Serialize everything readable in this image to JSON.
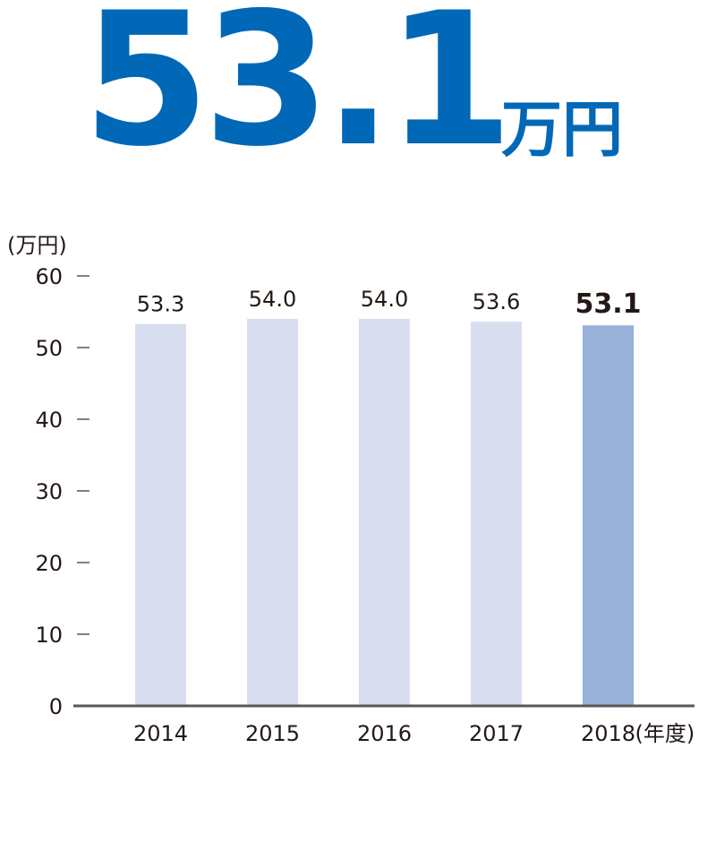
{
  "headline": {
    "value": "53.1",
    "unit": "万円"
  },
  "colors": {
    "headline": "#0068b7",
    "bar_default": "#d8deef",
    "bar_highlight": "#97b1d9",
    "axis": "#595757",
    "text": "#231815"
  },
  "chart_data": {
    "type": "bar",
    "categories": [
      "2014",
      "2015",
      "2016",
      "2017",
      "2018"
    ],
    "values": [
      53.3,
      54.0,
      54.0,
      53.6,
      53.1
    ],
    "value_labels": [
      "53.3",
      "54.0",
      "54.0",
      "53.6",
      "53.1"
    ],
    "highlight_index": 4,
    "ylabel": "(万円)",
    "xlabel_suffix": "(年度)",
    "ylim": [
      0,
      60
    ],
    "yticks": [
      0,
      10,
      20,
      30,
      40,
      50,
      60
    ],
    "grid": false
  }
}
